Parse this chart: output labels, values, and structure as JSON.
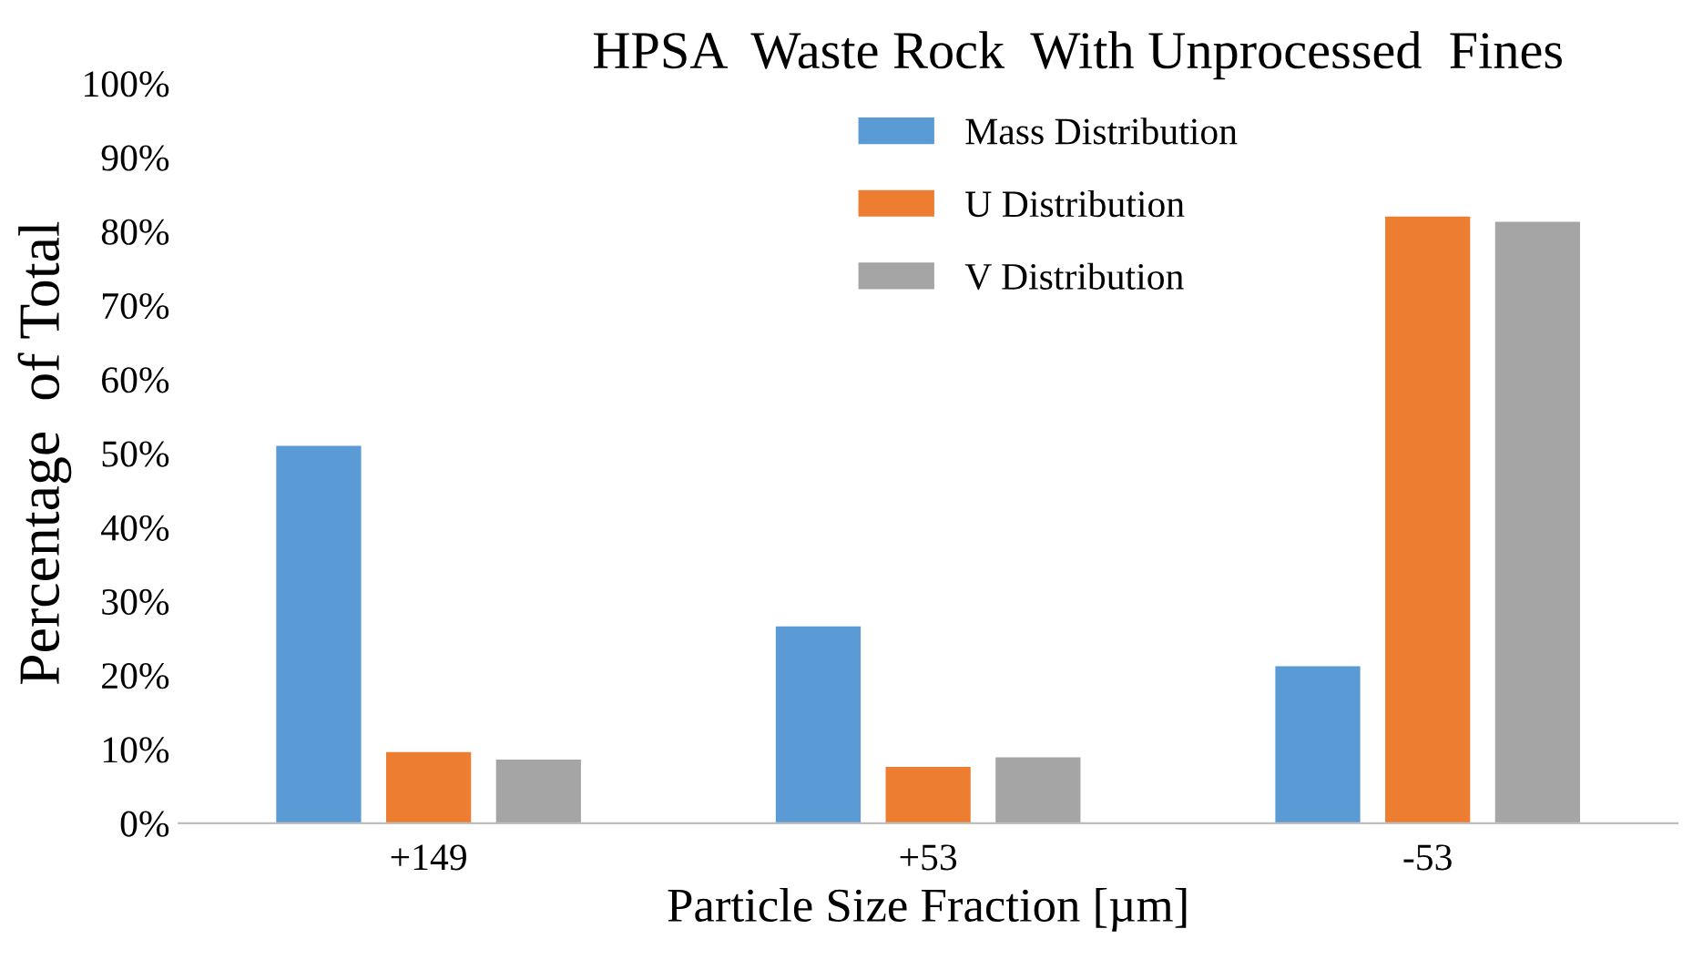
{
  "chart_data": {
    "type": "bar",
    "title": "HPSA  Waste Rock  With Unprocessed  Fines",
    "xlabel": "Particle Size Fraction [µm]",
    "ylabel": "Percentage  of Total",
    "categories": [
      "+149",
      "+53",
      "-53"
    ],
    "series": [
      {
        "name": "Mass Distribution",
        "color": "#5b9bd5",
        "values": [
          51,
          26.6,
          21.2
        ]
      },
      {
        "name": "U Distribution",
        "color": "#ed7d31",
        "values": [
          9.6,
          7.6,
          82
        ]
      },
      {
        "name": "V Distribution",
        "color": "#a5a5a5",
        "values": [
          8.6,
          8.9,
          81.3
        ]
      }
    ],
    "ylim": [
      0,
      100
    ],
    "yticks": [
      {
        "value": 0,
        "label": "0%"
      },
      {
        "value": 10,
        "label": "10%"
      },
      {
        "value": 20,
        "label": "20%"
      },
      {
        "value": 30,
        "label": "30%"
      },
      {
        "value": 40,
        "label": "40%"
      },
      {
        "value": 50,
        "label": "50%"
      },
      {
        "value": 60,
        "label": "60%"
      },
      {
        "value": 70,
        "label": "70%"
      },
      {
        "value": 80,
        "label": "80%"
      },
      {
        "value": 90,
        "label": "90%"
      },
      {
        "value": 100,
        "label": "100%"
      }
    ],
    "grid": false,
    "legend": "top"
  }
}
